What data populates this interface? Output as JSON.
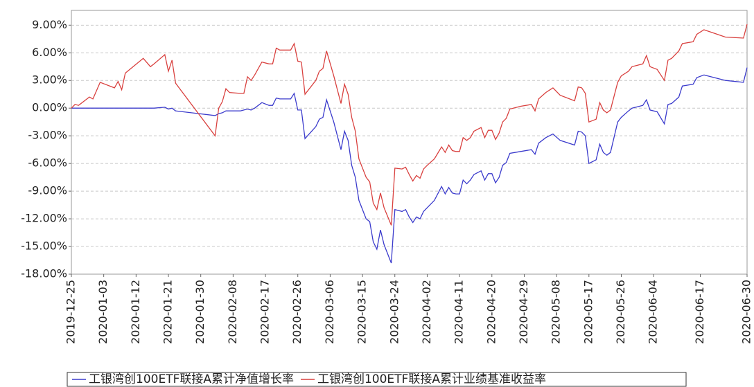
{
  "chart_data": {
    "type": "line",
    "x": [
      "2019-12-25",
      "2019-12-26",
      "2019-12-27",
      "2019-12-30",
      "2019-12-31",
      "2020-01-02",
      "2020-01-06",
      "2020-01-07",
      "2020-01-08",
      "2020-01-09",
      "2020-01-14",
      "2020-01-16",
      "2020-01-17",
      "2020-01-20",
      "2020-01-21",
      "2020-01-22",
      "2020-01-23",
      "2020-02-03",
      "2020-02-04",
      "2020-02-05",
      "2020-02-06",
      "2020-02-07",
      "2020-02-10",
      "2020-02-11",
      "2020-02-12",
      "2020-02-13",
      "2020-02-14",
      "2020-02-16",
      "2020-02-18",
      "2020-02-19",
      "2020-02-20",
      "2020-02-21",
      "2020-02-24",
      "2020-02-25",
      "2020-02-26",
      "2020-02-27",
      "2020-02-28",
      "2020-03-02",
      "2020-03-03",
      "2020-03-04",
      "2020-03-05",
      "2020-03-07",
      "2020-03-09",
      "2020-03-10",
      "2020-03-11",
      "2020-03-12",
      "2020-03-13",
      "2020-03-14",
      "2020-03-16",
      "2020-03-17",
      "2020-03-18",
      "2020-03-19",
      "2020-03-20",
      "2020-03-21",
      "2020-03-23",
      "2020-03-24",
      "2020-03-26",
      "2020-03-27",
      "2020-03-28",
      "2020-03-29",
      "2020-03-30",
      "2020-03-31",
      "2020-04-01",
      "2020-04-02",
      "2020-04-04",
      "2020-04-06",
      "2020-04-07",
      "2020-04-08",
      "2020-04-09",
      "2020-04-10",
      "2020-04-11",
      "2020-04-12",
      "2020-04-13",
      "2020-04-14",
      "2020-04-15",
      "2020-04-17",
      "2020-04-18",
      "2020-04-19",
      "2020-04-20",
      "2020-04-21",
      "2020-04-22",
      "2020-04-23",
      "2020-04-24",
      "2020-04-25",
      "2020-04-28",
      "2020-05-01",
      "2020-05-02",
      "2020-05-03",
      "2020-05-05",
      "2020-05-07",
      "2020-05-09",
      "2020-05-13",
      "2020-05-14",
      "2020-05-15",
      "2020-05-16",
      "2020-05-17",
      "2020-05-19",
      "2020-05-20",
      "2020-05-21",
      "2020-05-22",
      "2020-05-23",
      "2020-05-25",
      "2020-05-26",
      "2020-05-28",
      "2020-05-29",
      "2020-06-01",
      "2020-06-02",
      "2020-06-03",
      "2020-06-05",
      "2020-06-07",
      "2020-06-08",
      "2020-06-09",
      "2020-06-11",
      "2020-06-12",
      "2020-06-15",
      "2020-06-16",
      "2020-06-18",
      "2020-06-21",
      "2020-06-24",
      "2020-06-29",
      "2020-06-30"
    ],
    "series": [
      {
        "name": "工银湾创100ETF联接A累计净值增长率",
        "color": "#3b3bcc",
        "values": [
          0,
          0,
          0,
          0,
          0,
          0,
          0,
          0,
          0,
          0,
          0,
          0,
          0,
          0.1,
          -0.1,
          0,
          -0.3,
          -0.8,
          -0.6,
          -0.5,
          -0.3,
          -0.3,
          -0.3,
          -0.2,
          -0.1,
          -0.2,
          0,
          0.6,
          0.3,
          0.3,
          1.1,
          1.0,
          1.0,
          1.6,
          -0.2,
          -0.2,
          -3.3,
          -2.0,
          -1.2,
          -1.0,
          0.9,
          -1.5,
          -4.5,
          -2.5,
          -3.5,
          -6.2,
          -7.5,
          -10,
          -12,
          -12.3,
          -14.5,
          -15.3,
          -13.2,
          -14.8,
          -16.8,
          -11,
          -11.2,
          -11,
          -11.8,
          -12.4,
          -11.8,
          -12,
          -11.2,
          -10.8,
          -10,
          -8.5,
          -9.3,
          -8.6,
          -9.2,
          -9.3,
          -9.3,
          -7.8,
          -8.2,
          -7.8,
          -7.2,
          -6.8,
          -7.8,
          -7.1,
          -7.1,
          -8.1,
          -7.5,
          -6.2,
          -5.9,
          -4.9,
          -4.7,
          -4.5,
          -5.0,
          -3.8,
          -3.2,
          -2.8,
          -3.5,
          -4.0,
          -2.5,
          -2.6,
          -3.0,
          -6.0,
          -5.6,
          -3.9,
          -4.8,
          -5.1,
          -4.8,
          -1.5,
          -1.0,
          -0.3,
          0,
          0.3,
          0.9,
          -0.2,
          -0.4,
          -1.7,
          0.4,
          0.5,
          1.2,
          2.4,
          2.6,
          3.3,
          3.6,
          3.3,
          3.0,
          2.8,
          4.4
        ]
      },
      {
        "name": "工银湾创100ETF联接A累计业绩基准收益率",
        "color": "#d9413f",
        "values": [
          0,
          0.4,
          0.3,
          1.2,
          1.0,
          2.8,
          2.2,
          2.9,
          2.0,
          3.8,
          5.4,
          4.5,
          4.8,
          5.8,
          4.0,
          5.2,
          2.7,
          -3.0,
          0,
          0.7,
          2.1,
          1.7,
          1.6,
          1.6,
          3.4,
          3.0,
          3.6,
          5.0,
          4.8,
          4.8,
          6.5,
          6.3,
          6.3,
          7.0,
          5.1,
          5.0,
          1.5,
          3.0,
          4.0,
          4.3,
          6.2,
          3.5,
          0.5,
          2.6,
          1.5,
          -1.0,
          -2.5,
          -5.5,
          -7.5,
          -8.0,
          -10.3,
          -11,
          -9.2,
          -10.8,
          -12.7,
          -6.5,
          -6.6,
          -6.4,
          -7.2,
          -7.9,
          -7.3,
          -7.6,
          -6.6,
          -6.2,
          -5.5,
          -4.2,
          -4.8,
          -4.0,
          -4.6,
          -4.7,
          -4.7,
          -3.2,
          -3.5,
          -3.2,
          -2.5,
          -2.1,
          -3.2,
          -2.4,
          -2.4,
          -3.4,
          -2.7,
          -1.5,
          -1.1,
          -0.1,
          0.2,
          0.4,
          -0.3,
          1.0,
          1.7,
          2.2,
          1.4,
          0.8,
          2.3,
          2.2,
          1.6,
          -1.5,
          -1.2,
          0.6,
          -0.2,
          -0.5,
          -0.2,
          2.8,
          3.5,
          4.0,
          4.5,
          4.8,
          5.7,
          4.5,
          4.2,
          3.0,
          5.2,
          5.4,
          6.2,
          7.0,
          7.2,
          8.0,
          8.5,
          8.1,
          7.7,
          7.6,
          9.1
        ]
      }
    ],
    "xlim": [
      "2019-12-25",
      "2020-06-30"
    ],
    "xticks": [
      "2019-12-25",
      "2020-01-03",
      "2020-01-12",
      "2020-01-21",
      "2020-01-30",
      "2020-02-08",
      "2020-02-17",
      "2020-02-26",
      "2020-03-06",
      "2020-03-15",
      "2020-03-24",
      "2020-04-02",
      "2020-04-11",
      "2020-04-20",
      "2020-04-29",
      "2020-05-08",
      "2020-05-17",
      "2020-05-26",
      "2020-06-04",
      "2020-06-17",
      "2020-06-30"
    ],
    "ylim": [
      -18,
      10.6
    ],
    "yticks": [
      {
        "value": 9,
        "label": "9.00%"
      },
      {
        "value": 6,
        "label": "6.00%"
      },
      {
        "value": 3,
        "label": "3.00%"
      },
      {
        "value": 0,
        "label": "0.00%"
      },
      {
        "value": -3,
        "label": "-3.00%"
      },
      {
        "value": -6,
        "label": "-6.00%"
      },
      {
        "value": -9,
        "label": "-9.00%"
      },
      {
        "value": -12,
        "label": "-12.00%"
      },
      {
        "value": -15,
        "label": "-15.00%"
      },
      {
        "value": -18,
        "label": "-18.00%"
      }
    ],
    "grid": true,
    "legend": "bottom"
  }
}
